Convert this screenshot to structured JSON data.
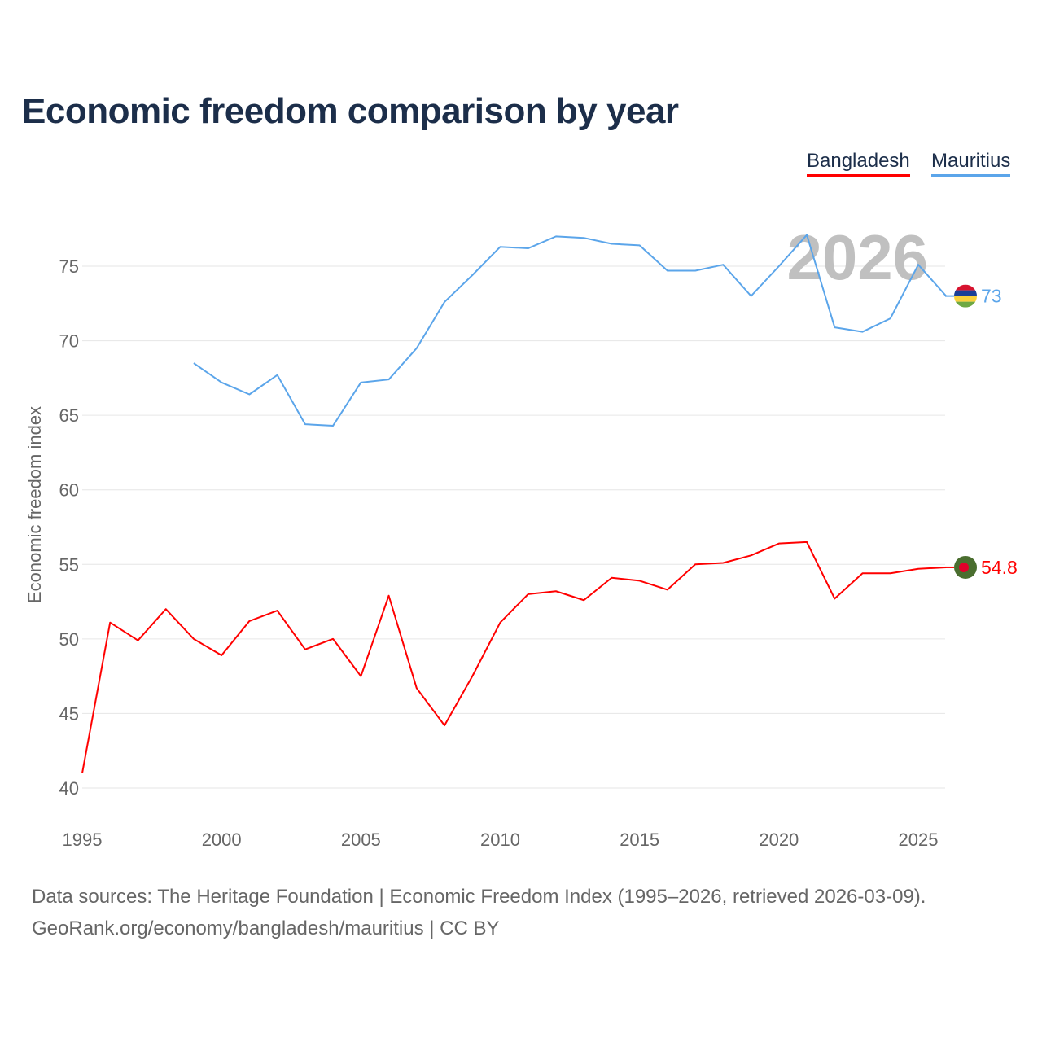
{
  "title": "Economic freedom comparison by year",
  "legend": [
    "Bangladesh",
    "Mauritius"
  ],
  "colors": {
    "Bangladesh": "#ff0000",
    "Mauritius": "#5ba5ea"
  },
  "watermark_year": "2026",
  "source_line1": "Data sources: The Heritage Foundation | Economic Freedom Index (1995–2026, retrieved 2026-03-09).",
  "source_line2": "GeoRank.org/economy/bangladesh/mauritius | CC BY",
  "chart_data": {
    "type": "line",
    "title": "Economic freedom comparison by year",
    "xlabel": "",
    "ylabel": "Economic freedom index",
    "xlim": [
      1995,
      2026
    ],
    "ylim": [
      40,
      77
    ],
    "yticks": [
      40,
      45,
      50,
      55,
      60,
      65,
      70,
      75
    ],
    "xticks": [
      1995,
      2000,
      2005,
      2010,
      2015,
      2020,
      2025
    ],
    "grid": true,
    "legend_position": "top-right",
    "series": [
      {
        "name": "Bangladesh",
        "end_label": "54.8",
        "x": [
          1995,
          1996,
          1997,
          1998,
          1999,
          2000,
          2001,
          2002,
          2003,
          2004,
          2005,
          2006,
          2007,
          2008,
          2009,
          2010,
          2011,
          2012,
          2013,
          2014,
          2015,
          2016,
          2017,
          2018,
          2019,
          2020,
          2021,
          2022,
          2023,
          2024,
          2025,
          2026
        ],
        "values": [
          41.0,
          51.1,
          49.9,
          52.0,
          50.0,
          48.9,
          51.2,
          51.9,
          49.3,
          50.0,
          47.5,
          52.9,
          46.7,
          44.2,
          47.5,
          51.1,
          53.0,
          53.2,
          52.6,
          54.1,
          53.9,
          53.3,
          55.0,
          55.1,
          55.6,
          56.4,
          56.5,
          52.7,
          54.4,
          54.4,
          54.7,
          54.8
        ]
      },
      {
        "name": "Mauritius",
        "end_label": "73",
        "x": [
          1999,
          2000,
          2001,
          2002,
          2003,
          2004,
          2005,
          2006,
          2007,
          2008,
          2009,
          2010,
          2011,
          2012,
          2013,
          2014,
          2015,
          2016,
          2017,
          2018,
          2019,
          2020,
          2021,
          2022,
          2023,
          2024,
          2025,
          2026
        ],
        "values": [
          68.5,
          67.2,
          66.4,
          67.7,
          64.4,
          64.3,
          67.2,
          67.4,
          69.5,
          72.6,
          74.4,
          76.3,
          76.2,
          77.0,
          76.9,
          76.5,
          76.4,
          74.7,
          74.7,
          75.1,
          73.0,
          75.0,
          77.1,
          70.9,
          70.6,
          71.5,
          75.1,
          73.0
        ]
      }
    ]
  }
}
